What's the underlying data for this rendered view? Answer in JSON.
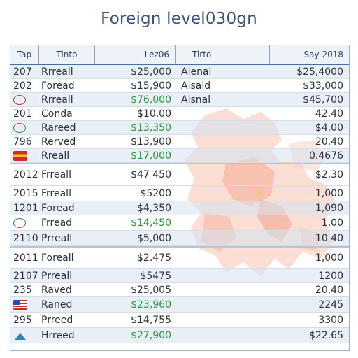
{
  "title": "Foreign level030gn",
  "columns": {
    "year": "Tap",
    "name": "Tinto",
    "amount": "Lez06",
    "region": "Tirto",
    "value": "Say 2018"
  },
  "rows": [
    {
      "year": "207",
      "name": "Rrreall",
      "amount": "$25,000",
      "region": "Alenal",
      "value": "$25,4000",
      "green": false
    },
    {
      "year": "202",
      "name": "Foread",
      "amount": "$15,900",
      "region": "Aisaid",
      "value": "$33,000",
      "green": false
    },
    {
      "flag": "circle-red-icon",
      "name": "Rrreall",
      "amount": "$76,000",
      "region": "Alsnal",
      "value": "$45,700",
      "green": true
    },
    {
      "year": "201",
      "name": "Conda",
      "amount": "$10,00",
      "value": "42.40",
      "green": false
    },
    {
      "flag": "circle-green-icon",
      "name": "Rareed",
      "amount": "$13,350",
      "value": "$4.00",
      "green": true
    },
    {
      "year": "796",
      "name": "Rerved",
      "amount": "$13,900",
      "value": "20.40",
      "green": false
    },
    {
      "flag": "flag-red-yellow-icon",
      "name": "Rreall",
      "amount": "$17,000",
      "value": "0.4676",
      "green": true
    },
    {
      "year": "2012",
      "name": "Frreall",
      "amount": "$47 450",
      "value": "$2.30",
      "green": false
    },
    {
      "year": "2015",
      "name": "Frreall",
      "amount": "$5200",
      "value": "1,000",
      "green": false
    },
    {
      "year": "1201",
      "name": "Foread",
      "amount": "$4,350",
      "value": "1,090",
      "green": false
    },
    {
      "flag": "circle-green-icon",
      "name": "Frread",
      "amount": "$14,450",
      "value": "1,00",
      "green": true
    },
    {
      "year": "2110",
      "name": "Prreall",
      "amount": "$5,000",
      "value": "10 40",
      "green": false
    },
    {
      "year": "2011",
      "name": "Foreall",
      "amount": "$2.475",
      "value": "1,000",
      "green": false
    },
    {
      "year": "2107",
      "name": "Prreall",
      "amount": "$5475",
      "value": "1200",
      "green": false
    },
    {
      "year": "235",
      "name": "Raved",
      "amount": "$25,005",
      "value": "20.40",
      "green": false
    },
    {
      "flag": "flag-us-icon",
      "name": "Raned",
      "amount": "$23,960",
      "value": "2245",
      "green": true
    },
    {
      "year": "295",
      "name": "Prreed",
      "amount": "$14,755",
      "value": "3300",
      "green": false
    },
    {
      "flag": "flag-mountain-icon",
      "name": "Hrreed",
      "amount": "$27,900",
      "value": "$22.65",
      "green": true
    }
  ]
}
